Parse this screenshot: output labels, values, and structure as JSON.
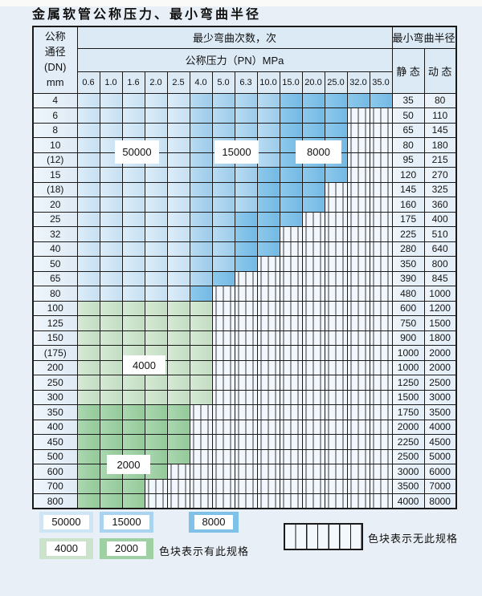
{
  "title": "金属软管公称压力、最小弯曲半径",
  "table": {
    "header": {
      "dn_lines": [
        "公称",
        "通径",
        "(DN)",
        "mm"
      ],
      "bend_count_label": "最少弯曲次数，次",
      "bend_radius_label": "最小弯曲半径",
      "pressure_label": "公称压力（PN）MPa",
      "static_label": "静 态",
      "dynamic_label": "动 态",
      "pressures": [
        "0.6",
        "1.0",
        "1.6",
        "2.0",
        "2.5",
        "4.0",
        "5.0",
        "6.3",
        "10.0",
        "15.0",
        "20.0",
        "25.0",
        "32.0",
        "35.0"
      ]
    },
    "cell_code_legend": {
      "L": "50000 次",
      "M": "15000 次",
      "D": "8000 次",
      "g": "4000 次",
      "G": "2000 次",
      "x": "无此规格"
    },
    "rows": [
      {
        "dn": "4",
        "cells": "LLLLLMMMMDDDDD",
        "static": "35",
        "dynamic": "80"
      },
      {
        "dn": "6",
        "cells": "LLLLLMMMMDDDxx",
        "static": "50",
        "dynamic": "110"
      },
      {
        "dn": "8",
        "cells": "LLLLLMMMMDDDxx",
        "static": "65",
        "dynamic": "145"
      },
      {
        "dn": "10",
        "cells": "LLLLLMMMMDDDxx",
        "static": "80",
        "dynamic": "180"
      },
      {
        "dn": "(12)",
        "cells": "LLLLLMMMMDDDxx",
        "static": "95",
        "dynamic": "215"
      },
      {
        "dn": "15",
        "cells": "LLLLLMMMDDDDxx",
        "static": "120",
        "dynamic": "270"
      },
      {
        "dn": "(18)",
        "cells": "LLLLLMMMDDDxxx",
        "static": "145",
        "dynamic": "325"
      },
      {
        "dn": "20",
        "cells": "LLLLLMMMDDDxxx",
        "static": "160",
        "dynamic": "360"
      },
      {
        "dn": "25",
        "cells": "LLLLLMMDDDxxxx",
        "static": "175",
        "dynamic": "400"
      },
      {
        "dn": "32",
        "cells": "LLLLLMMDDxxxxx",
        "static": "225",
        "dynamic": "510"
      },
      {
        "dn": "40",
        "cells": "LLLLLMMDDxxxxx",
        "static": "280",
        "dynamic": "640"
      },
      {
        "dn": "50",
        "cells": "LLLLLMMDxxxxxx",
        "static": "350",
        "dynamic": "800"
      },
      {
        "dn": "65",
        "cells": "LLLLLMDxxxxxxx",
        "static": "390",
        "dynamic": "845"
      },
      {
        "dn": "80",
        "cells": "LLLLLDxxxxxxxx",
        "static": "480",
        "dynamic": "1000"
      },
      {
        "dn": "100",
        "cells": "ggggggxxxxxxxx",
        "static": "600",
        "dynamic": "1200"
      },
      {
        "dn": "125",
        "cells": "ggggggxxxxxxxx",
        "static": "750",
        "dynamic": "1500"
      },
      {
        "dn": "150",
        "cells": "ggggggxxxxxxxx",
        "static": "900",
        "dynamic": "1800"
      },
      {
        "dn": "(175)",
        "cells": "ggggggxxxxxxxx",
        "static": "1000",
        "dynamic": "2000"
      },
      {
        "dn": "200",
        "cells": "ggggggxxxxxxxx",
        "static": "1000",
        "dynamic": "2000"
      },
      {
        "dn": "250",
        "cells": "ggggggxxxxxxxx",
        "static": "1250",
        "dynamic": "2500"
      },
      {
        "dn": "300",
        "cells": "ggggggxxxxxxxx",
        "static": "1500",
        "dynamic": "3000"
      },
      {
        "dn": "350",
        "cells": "GGGGGxxxxxxxxx",
        "static": "1750",
        "dynamic": "3500"
      },
      {
        "dn": "400",
        "cells": "GGGGGxxxxxxxxx",
        "static": "2000",
        "dynamic": "4000"
      },
      {
        "dn": "450",
        "cells": "GGGGGxxxxxxxxx",
        "static": "2250",
        "dynamic": "4500"
      },
      {
        "dn": "500",
        "cells": "GGGGGxxxxxxxxx",
        "static": "2500",
        "dynamic": "5000"
      },
      {
        "dn": "600",
        "cells": "GGGGxxxxxxxxxx",
        "static": "3000",
        "dynamic": "6000"
      },
      {
        "dn": "700",
        "cells": "GGGxxxxxxxxxxx",
        "static": "3500",
        "dynamic": "7000"
      },
      {
        "dn": "800",
        "cells": "GGGxxxxxxxxxxx",
        "static": "4000",
        "dynamic": "8000"
      }
    ]
  },
  "overlays": [
    {
      "id": "label-50000",
      "text": "50000"
    },
    {
      "id": "label-15000",
      "text": "15000"
    },
    {
      "id": "label-8000",
      "text": "8000"
    },
    {
      "id": "label-4000",
      "text": "4000"
    },
    {
      "id": "label-2000",
      "text": "2000"
    }
  ],
  "legend": {
    "items": [
      {
        "label": "50000",
        "color": "#cee5f5"
      },
      {
        "label": "15000",
        "color": "#a9d3ee"
      },
      {
        "label": "8000",
        "color": "#7fc1e7"
      },
      {
        "label": "4000",
        "color": "#cbe3cb"
      },
      {
        "label": "2000",
        "color": "#9ed0a4"
      }
    ],
    "has_spec_text": "色块表示有此规格",
    "no_spec_text": "色块表示无此规格"
  }
}
